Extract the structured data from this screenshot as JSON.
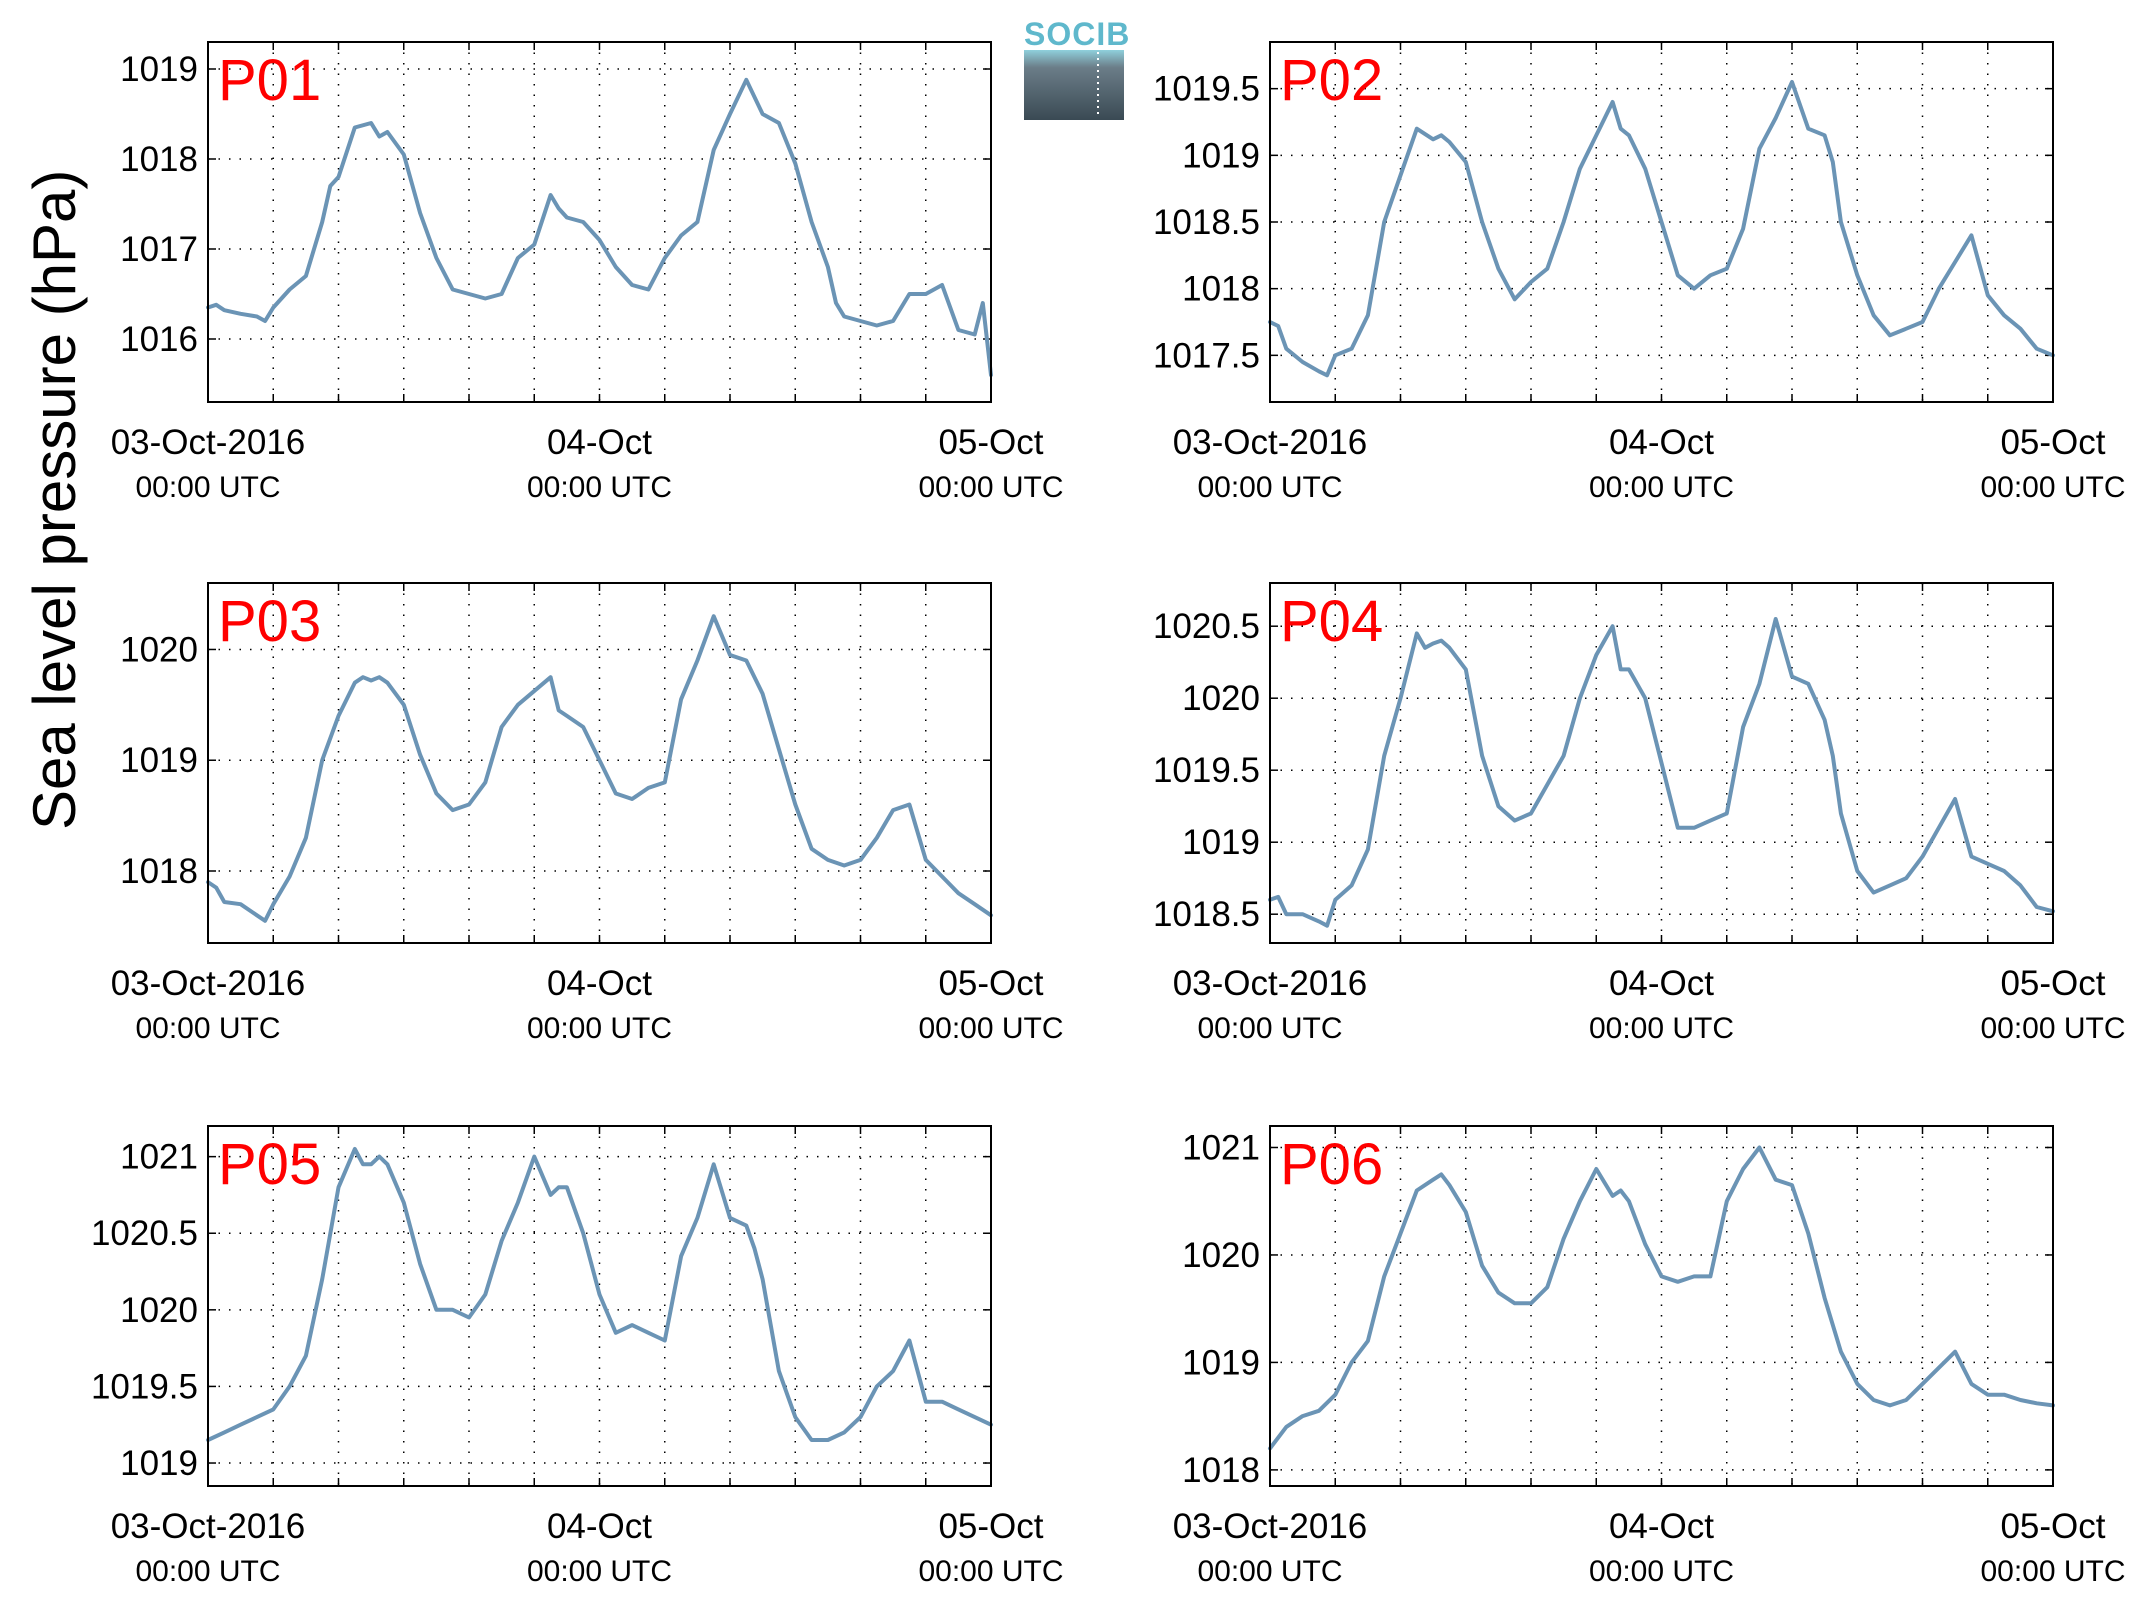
{
  "figure": {
    "ylabel": "Sea level pressure (hPa)",
    "logo_text": "SOCIB",
    "line_color": "#6b94b5",
    "label_color": "#ff0000"
  },
  "chart_data": [
    {
      "type": "line",
      "panel_label": "P01",
      "xlim": [
        0,
        48
      ],
      "ylim": [
        1015.3,
        1019.3
      ],
      "yticks": [
        1016,
        1017,
        1018,
        1019
      ],
      "ytick_labels": [
        "1016",
        "1017",
        "1018",
        "1019"
      ],
      "xticks": [
        0,
        24,
        48
      ],
      "xtick_labels": [
        "03-Oct-2016",
        "04-Oct",
        "05-Oct"
      ],
      "xtick_sublabels": [
        "00:00 UTC",
        "00:00 UTC",
        "00:00 UTC"
      ],
      "grid": true,
      "series": [
        {
          "x": [
            0,
            0.5,
            1,
            2,
            3,
            3.5,
            4,
            5,
            6,
            7,
            7.5,
            8,
            9,
            10,
            10.5,
            11,
            12,
            13,
            14,
            15,
            16,
            17,
            18,
            19,
            20,
            21,
            21.5,
            22,
            23,
            24,
            25,
            26,
            27,
            28,
            29,
            30,
            31,
            32,
            33,
            34,
            35,
            36,
            37,
            38,
            38.5,
            39,
            40,
            41,
            42,
            43,
            44,
            45,
            46,
            47,
            47.5,
            48
          ],
          "y": [
            1016.35,
            1016.38,
            1016.32,
            1016.28,
            1016.25,
            1016.2,
            1016.35,
            1016.55,
            1016.7,
            1017.3,
            1017.7,
            1017.8,
            1018.35,
            1018.4,
            1018.25,
            1018.3,
            1018.05,
            1017.4,
            1016.9,
            1016.55,
            1016.5,
            1016.45,
            1016.5,
            1016.9,
            1017.05,
            1017.6,
            1017.45,
            1017.35,
            1017.3,
            1017.1,
            1016.8,
            1016.6,
            1016.55,
            1016.9,
            1017.15,
            1017.3,
            1018.1,
            1018.5,
            1018.88,
            1018.5,
            1018.4,
            1017.95,
            1017.3,
            1016.8,
            1016.4,
            1016.25,
            1016.2,
            1016.15,
            1016.2,
            1016.5,
            1016.5,
            1016.6,
            1016.1,
            1016.05,
            1016.4,
            1015.6
          ]
        }
      ]
    },
    {
      "type": "line",
      "panel_label": "P02",
      "xlim": [
        0,
        48
      ],
      "ylim": [
        1017.15,
        1019.85
      ],
      "yticks": [
        1017.5,
        1018,
        1018.5,
        1019,
        1019.5
      ],
      "ytick_labels": [
        "1017.5",
        "1018",
        "1018.5",
        "1019",
        "1019.5"
      ],
      "xticks": [
        0,
        24,
        48
      ],
      "xtick_labels": [
        "03-Oct-2016",
        "04-Oct",
        "05-Oct"
      ],
      "xtick_sublabels": [
        "00:00 UTC",
        "00:00 UTC",
        "00:00 UTC"
      ],
      "grid": true,
      "series": [
        {
          "x": [
            0,
            0.5,
            1,
            2,
            3,
            3.5,
            4,
            5,
            6,
            7,
            8,
            9,
            10,
            10.5,
            11,
            12,
            13,
            14,
            15,
            16,
            17,
            18,
            19,
            20,
            21,
            21.5,
            22,
            23,
            24,
            25,
            26,
            27,
            28,
            29,
            30,
            31,
            32,
            33,
            34,
            34.5,
            35,
            36,
            37,
            38,
            39,
            40,
            41,
            42,
            43,
            44,
            45,
            46,
            47,
            48
          ],
          "y": [
            1017.75,
            1017.72,
            1017.55,
            1017.45,
            1017.38,
            1017.35,
            1017.5,
            1017.55,
            1017.8,
            1018.5,
            1018.85,
            1019.2,
            1019.12,
            1019.15,
            1019.1,
            1018.95,
            1018.5,
            1018.15,
            1017.92,
            1018.05,
            1018.15,
            1018.5,
            1018.9,
            1019.15,
            1019.4,
            1019.2,
            1019.15,
            1018.9,
            1018.5,
            1018.1,
            1018,
            1018.1,
            1018.15,
            1018.45,
            1019.05,
            1019.28,
            1019.55,
            1019.2,
            1019.15,
            1018.95,
            1018.5,
            1018.1,
            1017.8,
            1017.65,
            1017.7,
            1017.75,
            1018.0,
            1018.2,
            1018.4,
            1017.95,
            1017.8,
            1017.7,
            1017.55,
            1017.5
          ]
        }
      ]
    },
    {
      "type": "line",
      "panel_label": "P03",
      "xlim": [
        0,
        48
      ],
      "ylim": [
        1017.35,
        1020.6
      ],
      "yticks": [
        1018,
        1019,
        1020
      ],
      "ytick_labels": [
        "1018",
        "1019",
        "1020"
      ],
      "xticks": [
        0,
        24,
        48
      ],
      "xtick_labels": [
        "03-Oct-2016",
        "04-Oct",
        "05-Oct"
      ],
      "xtick_sublabels": [
        "00:00 UTC",
        "00:00 UTC",
        "00:00 UTC"
      ],
      "grid": true,
      "series": [
        {
          "x": [
            0,
            0.5,
            1,
            2,
            3,
            3.5,
            4,
            5,
            6,
            7,
            8,
            9,
            9.5,
            10,
            10.5,
            11,
            12,
            13,
            14,
            15,
            16,
            17,
            18,
            19,
            21,
            21.5,
            22,
            23,
            24,
            25,
            26,
            27,
            28,
            29,
            30,
            31,
            32,
            33,
            33.5,
            34,
            35,
            36,
            37,
            38,
            39,
            40,
            41,
            42,
            43,
            44,
            45,
            46,
            47,
            48
          ],
          "y": [
            1017.9,
            1017.85,
            1017.72,
            1017.7,
            1017.6,
            1017.55,
            1017.7,
            1017.95,
            1018.3,
            1019.0,
            1019.4,
            1019.7,
            1019.75,
            1019.72,
            1019.75,
            1019.7,
            1019.5,
            1019.05,
            1018.7,
            1018.55,
            1018.6,
            1018.8,
            1019.3,
            1019.5,
            1019.75,
            1019.45,
            1019.4,
            1019.3,
            1019.0,
            1018.7,
            1018.65,
            1018.75,
            1018.8,
            1019.55,
            1019.9,
            1020.3,
            1019.95,
            1019.9,
            1019.75,
            1019.6,
            1019.1,
            1018.6,
            1018.2,
            1018.1,
            1018.05,
            1018.1,
            1018.3,
            1018.55,
            1018.6,
            1018.1,
            1017.95,
            1017.8,
            1017.7,
            1017.6
          ]
        }
      ]
    },
    {
      "type": "line",
      "panel_label": "P04",
      "xlim": [
        0,
        48
      ],
      "ylim": [
        1018.3,
        1020.8
      ],
      "yticks": [
        1018.5,
        1019,
        1019.5,
        1020,
        1020.5
      ],
      "ytick_labels": [
        "1018.5",
        "1019",
        "1019.5",
        "1020",
        "1020.5"
      ],
      "xticks": [
        0,
        24,
        48
      ],
      "xtick_labels": [
        "03-Oct-2016",
        "04-Oct",
        "05-Oct"
      ],
      "xtick_sublabels": [
        "00:00 UTC",
        "00:00 UTC",
        "00:00 UTC"
      ],
      "grid": true,
      "series": [
        {
          "x": [
            0,
            0.5,
            1,
            2,
            3,
            3.5,
            4,
            5,
            6,
            7,
            8,
            9,
            9.5,
            10,
            10.5,
            11,
            12,
            13,
            14,
            15,
            16,
            17,
            18,
            19,
            20,
            21,
            21.5,
            22,
            23,
            24,
            25,
            26,
            27,
            28,
            29,
            30,
            31,
            32,
            33,
            34,
            34.5,
            35,
            36,
            37,
            38,
            39,
            40,
            41,
            42,
            43,
            44,
            45,
            46,
            47,
            48
          ],
          "y": [
            1018.6,
            1018.62,
            1018.5,
            1018.5,
            1018.45,
            1018.42,
            1018.6,
            1018.7,
            1018.95,
            1019.6,
            1020.0,
            1020.45,
            1020.35,
            1020.38,
            1020.4,
            1020.35,
            1020.2,
            1019.6,
            1019.25,
            1019.15,
            1019.2,
            1019.4,
            1019.6,
            1020.0,
            1020.3,
            1020.5,
            1020.2,
            1020.2,
            1020.0,
            1019.55,
            1019.1,
            1019.1,
            1019.15,
            1019.2,
            1019.8,
            1020.1,
            1020.55,
            1020.15,
            1020.1,
            1019.85,
            1019.6,
            1019.2,
            1018.8,
            1018.65,
            1018.7,
            1018.75,
            1018.9,
            1019.1,
            1019.3,
            1018.9,
            1018.85,
            1018.8,
            1018.7,
            1018.55,
            1018.52
          ]
        }
      ]
    },
    {
      "type": "line",
      "panel_label": "P05",
      "xlim": [
        0,
        48
      ],
      "ylim": [
        1018.85,
        1021.2
      ],
      "yticks": [
        1019,
        1019.5,
        1020,
        1020.5,
        1021
      ],
      "ytick_labels": [
        "1019",
        "1019.5",
        "1020",
        "1020.5",
        "1021"
      ],
      "xticks": [
        0,
        24,
        48
      ],
      "xtick_labels": [
        "03-Oct-2016",
        "04-Oct",
        "05-Oct"
      ],
      "xtick_sublabels": [
        "00:00 UTC",
        "00:00 UTC",
        "00:00 UTC"
      ],
      "grid": true,
      "series": [
        {
          "x": [
            0,
            1,
            2,
            3,
            4,
            5,
            6,
            7,
            8,
            9,
            9.5,
            10,
            10.5,
            11,
            12,
            13,
            14,
            15,
            16,
            17,
            18,
            19,
            20,
            21,
            21.5,
            22,
            23,
            24,
            25,
            26,
            27,
            28,
            29,
            30,
            31,
            32,
            33,
            33.5,
            34,
            35,
            36,
            37,
            38,
            39,
            40,
            41,
            42,
            43,
            44,
            45,
            46,
            47,
            48
          ],
          "y": [
            1019.15,
            1019.2,
            1019.25,
            1019.3,
            1019.35,
            1019.5,
            1019.7,
            1020.2,
            1020.8,
            1021.05,
            1020.95,
            1020.95,
            1021.0,
            1020.95,
            1020.7,
            1020.3,
            1020.0,
            1020.0,
            1019.95,
            1020.1,
            1020.45,
            1020.7,
            1021.0,
            1020.75,
            1020.8,
            1020.8,
            1020.5,
            1020.1,
            1019.85,
            1019.9,
            1019.85,
            1019.8,
            1020.35,
            1020.6,
            1020.95,
            1020.6,
            1020.55,
            1020.4,
            1020.2,
            1019.6,
            1019.3,
            1019.15,
            1019.15,
            1019.2,
            1019.3,
            1019.5,
            1019.6,
            1019.8,
            1019.4,
            1019.4,
            1019.35,
            1019.3,
            1019.25
          ]
        }
      ]
    },
    {
      "type": "line",
      "panel_label": "P06",
      "xlim": [
        0,
        48
      ],
      "ylim": [
        1017.85,
        1021.2
      ],
      "yticks": [
        1018,
        1019,
        1020,
        1021
      ],
      "ytick_labels": [
        "1018",
        "1019",
        "1020",
        "1021"
      ],
      "xticks": [
        0,
        24,
        48
      ],
      "xtick_labels": [
        "03-Oct-2016",
        "04-Oct",
        "05-Oct"
      ],
      "xtick_sublabels": [
        "00:00 UTC",
        "00:00 UTC",
        "00:00 UTC"
      ],
      "grid": true,
      "series": [
        {
          "x": [
            0,
            1,
            2,
            3,
            4,
            5,
            6,
            7,
            8,
            9,
            10,
            10.5,
            11,
            12,
            13,
            14,
            15,
            16,
            17,
            18,
            19,
            20,
            21,
            21.5,
            22,
            23,
            24,
            25,
            26,
            27,
            28,
            29,
            30,
            31,
            32,
            33,
            34,
            35,
            36,
            37,
            38,
            39,
            40,
            41,
            42,
            43,
            44,
            45,
            46,
            47,
            48
          ],
          "y": [
            1018.2,
            1018.4,
            1018.5,
            1018.55,
            1018.7,
            1019.0,
            1019.2,
            1019.8,
            1020.2,
            1020.6,
            1020.7,
            1020.75,
            1020.65,
            1020.4,
            1019.9,
            1019.65,
            1019.55,
            1019.55,
            1019.7,
            1020.15,
            1020.5,
            1020.8,
            1020.55,
            1020.6,
            1020.5,
            1020.1,
            1019.8,
            1019.75,
            1019.8,
            1019.8,
            1020.5,
            1020.8,
            1021.0,
            1020.7,
            1020.65,
            1020.2,
            1019.6,
            1019.1,
            1018.8,
            1018.65,
            1018.6,
            1018.65,
            1018.8,
            1018.95,
            1019.1,
            1018.8,
            1018.7,
            1018.7,
            1018.65,
            1018.62,
            1018.6
          ]
        }
      ]
    }
  ]
}
